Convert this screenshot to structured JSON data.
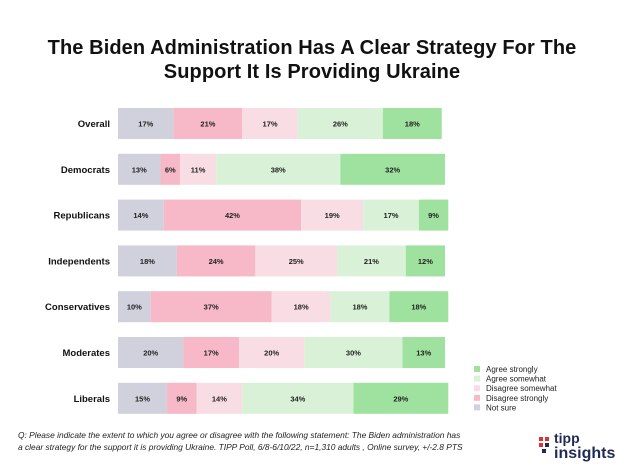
{
  "title_line1": "The Biden Administration Has A Clear Strategy For The",
  "title_line2": "Support It Is Providing Ukraine",
  "footnote_line1": "Q:  Please indicate the extent to which you agree or disagree with the following statement: The Biden administration has",
  "footnote_line2": "a clear strategy for the support it is providing Ukraine. TIPP Poll, 6/8-6/10/22, n=1,310 adults , Online survey, +/-2.8 PTS",
  "logo": {
    "top": "tipp",
    "bottom": "insights"
  },
  "chart_data": {
    "type": "bar",
    "stacked": true,
    "orientation": "horizontal",
    "categories": [
      "Overall",
      "Democrats",
      "Republicans",
      "Independents",
      "Conservatives",
      "Moderates",
      "Liberals"
    ],
    "series": [
      {
        "name": "Not sure",
        "color": "#d0d1dd",
        "values": [
          17,
          13,
          14,
          18,
          10,
          20,
          15
        ]
      },
      {
        "name": "Disagree strongly",
        "color": "#f7b8c8",
        "values": [
          21,
          6,
          42,
          24,
          37,
          17,
          9
        ]
      },
      {
        "name": "Disagree somewhat",
        "color": "#f8dde4",
        "values": [
          17,
          11,
          19,
          25,
          18,
          20,
          14
        ]
      },
      {
        "name": "Agree somewhat",
        "color": "#d9f2d7",
        "values": [
          26,
          38,
          17,
          21,
          18,
          30,
          34
        ]
      },
      {
        "name": "Agree strongly",
        "color": "#9fe29f",
        "values": [
          18,
          32,
          9,
          12,
          18,
          13,
          29
        ]
      }
    ],
    "legend_order": [
      "Agree strongly",
      "Agree somewhat",
      "Disagree somewhat",
      "Disagree strongly",
      "Not sure"
    ],
    "legend_position": "bottom-right",
    "value_suffix": "%"
  }
}
